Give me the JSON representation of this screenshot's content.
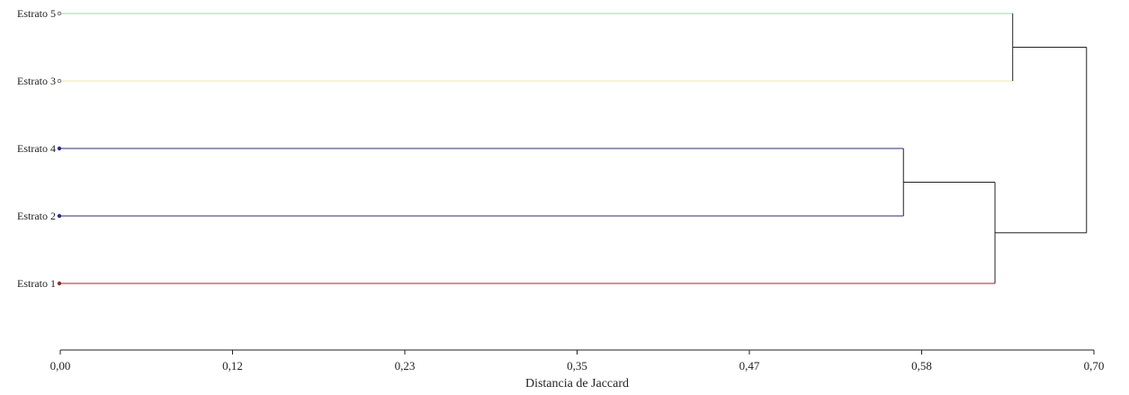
{
  "chart_data": {
    "type": "dendrogram",
    "xlabel": "Distancia de Jaccard",
    "xlim": [
      0,
      0.7
    ],
    "x_ticks": [
      "0,00",
      "0,12",
      "0,23",
      "0,35",
      "0,47",
      "0,58",
      "0,70"
    ],
    "leaves": [
      {
        "label": "Estrato 5",
        "color": "#9fd79f",
        "marker": "open"
      },
      {
        "label": "Estrato 3",
        "color": "#f0ea9a",
        "marker": "open"
      },
      {
        "label": "Estrato 4",
        "color": "#2a2a8f",
        "marker": "filled"
      },
      {
        "label": "Estrato 2",
        "color": "#2a2a8f",
        "marker": "filled"
      },
      {
        "label": "Estrato 1",
        "color": "#9a2a2a",
        "marker": "filled"
      }
    ],
    "merges": [
      {
        "id": "a",
        "children": [
          "Estrato 4",
          "Estrato 2"
        ],
        "distance": 0.571
      },
      {
        "id": "b",
        "children": [
          "Estrato 5",
          "Estrato 3"
        ],
        "distance": 0.645
      },
      {
        "id": "c",
        "children": [
          "a",
          "Estrato 1"
        ],
        "distance": 0.633
      },
      {
        "id": "d",
        "children": [
          "b",
          "c"
        ],
        "distance": 0.695
      }
    ],
    "link_color": "#222222"
  }
}
